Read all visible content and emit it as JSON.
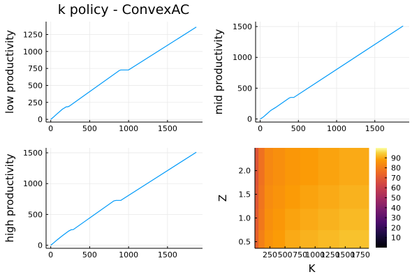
{
  "figure_title": "k policy - ConvexAC",
  "colors": {
    "line": "#009af9",
    "grid": "#e9e9e9",
    "axis": "#000000"
  },
  "chart_data": [
    {
      "type": "line",
      "panel": "low",
      "title": "k policy - ConvexAC",
      "xlabel": "",
      "ylabel": "low productivity",
      "xlim": [
        -60,
        1950
      ],
      "ylim": [
        -40,
        1440
      ],
      "xticks": [
        0,
        500,
        1000,
        1500
      ],
      "yticks": [
        0,
        250,
        500,
        750,
        1000,
        1250
      ],
      "grid": true,
      "legend": "none",
      "series": [
        {
          "x": [
            0,
            30,
            80,
            150,
            200,
            220,
            240,
            880,
            900,
            1000,
            1870
          ],
          "y": [
            0,
            28,
            80,
            150,
            185,
            185,
            195,
            720,
            728,
            728,
            1360
          ]
        }
      ]
    },
    {
      "type": "line",
      "panel": "mid",
      "xlabel": "",
      "ylabel": "mid productivity",
      "xlim": [
        -60,
        1950
      ],
      "ylim": [
        -50,
        1580
      ],
      "xticks": [
        0,
        500,
        1000,
        1500
      ],
      "yticks": [
        0,
        500,
        1000,
        1500
      ],
      "grid": true,
      "legend": "none",
      "series": [
        {
          "x": [
            0,
            40,
            80,
            140,
            200,
            380,
            400,
            440,
            1870
          ],
          "y": [
            0,
            30,
            75,
            140,
            185,
            340,
            350,
            350,
            1510
          ]
        }
      ]
    },
    {
      "type": "line",
      "panel": "high",
      "xlabel": "",
      "ylabel": "high productivity",
      "xlim": [
        -60,
        1950
      ],
      "ylim": [
        -50,
        1580
      ],
      "xticks": [
        0,
        500,
        1000,
        1500
      ],
      "yticks": [
        0,
        500,
        1000,
        1500
      ],
      "grid": true,
      "legend": "none",
      "series": [
        {
          "x": [
            0,
            30,
            80,
            150,
            230,
            260,
            290,
            810,
            840,
            900,
            1870
          ],
          "y": [
            0,
            30,
            85,
            155,
            230,
            250,
            255,
            720,
            728,
            728,
            1510
          ]
        }
      ]
    },
    {
      "type": "heatmap",
      "panel": "heatmap",
      "xlabel": "K",
      "ylabel": "Z",
      "xlim": [
        0,
        1890
      ],
      "ylim": [
        0.36,
        2.48
      ],
      "xticks": [
        250,
        500,
        750,
        1000,
        1250,
        1500,
        1750
      ],
      "xticklabels": [
        "250",
        "500",
        "750",
        "1000",
        "1250",
        "1500",
        "1750"
      ],
      "yticks": [
        0.5,
        1.0,
        1.5,
        2.0
      ],
      "yticklabels": [
        "0.5",
        "1.0",
        "1.5",
        "2.0"
      ],
      "colorbar": {
        "min": 0,
        "max": 100,
        "ticks": [
          10,
          20,
          30,
          40,
          50,
          60,
          70,
          80,
          90
        ]
      },
      "k_edges": [
        0,
        60,
        160,
        300,
        500,
        750,
        1050,
        1400,
        1890
      ],
      "z_edges": [
        0.36,
        0.75,
        1.2,
        1.7,
        2.48
      ],
      "values": [
        [
          72,
          81,
          86,
          88,
          90,
          91,
          92,
          93
        ],
        [
          70,
          79,
          85,
          87,
          89,
          90,
          91,
          92
        ],
        [
          69,
          78,
          84,
          86,
          88,
          89,
          90,
          91
        ],
        [
          68,
          77,
          83,
          85,
          87,
          88,
          89,
          90
        ]
      ]
    }
  ]
}
